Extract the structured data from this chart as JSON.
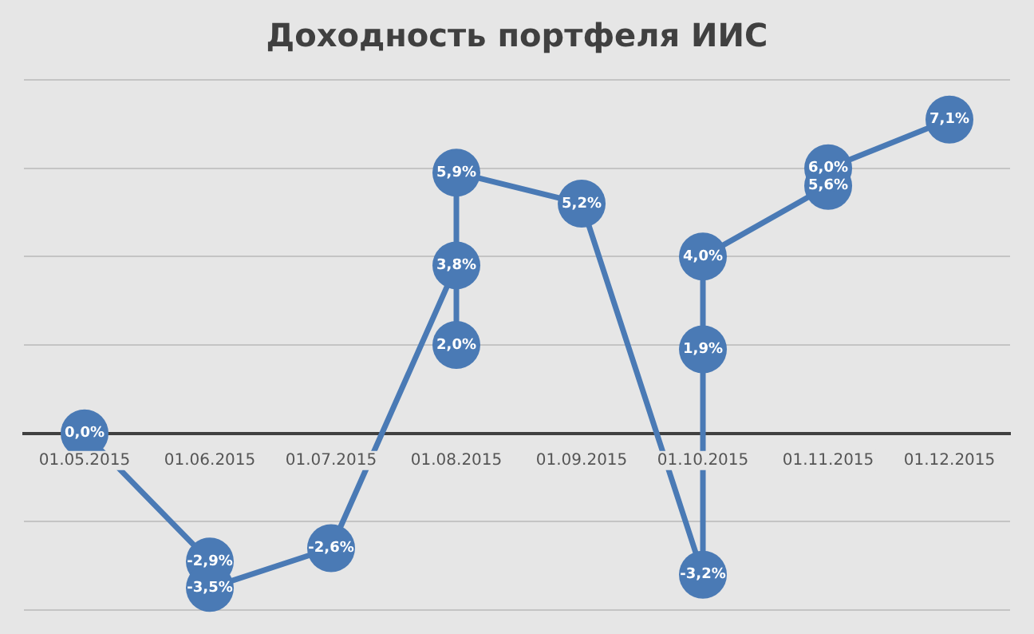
{
  "chart_data": {
    "type": "line",
    "title": "Доходность портфеля ИИС",
    "x": [
      "2015-05-01",
      "2015-06-01",
      "2015-06-01",
      "2015-07-01",
      "2015-08-01",
      "2015-08-01",
      "2015-08-01",
      "2015-09-01",
      "2015-10-01",
      "2015-10-01",
      "2015-10-01",
      "2015-11-01",
      "2015-11-01",
      "2015-12-01"
    ],
    "series": [
      {
        "color": "#4a7ab5",
        "values": [
          0.0,
          -2.9,
          -3.5,
          -2.6,
          3.8,
          2.0,
          5.9,
          5.2,
          -3.2,
          1.9,
          4.0,
          5.6,
          6.0,
          7.1
        ],
        "value_labels": [
          "0,0%",
          "-2,9%",
          "-3,5%",
          "-2,6%",
          "3,8%",
          "2,0%",
          "5,9%",
          "5,2%",
          "-3,2%",
          "1,9%",
          "4,0%",
          "5,6%",
          "6,0%",
          "7,1%"
        ]
      }
    ],
    "xlim": [
      "2015-04-16",
      "2015-12-16"
    ],
    "xticks": [
      {
        "value": "2015-05-01",
        "label": "01.05.2015"
      },
      {
        "value": "2015-06-01",
        "label": "01.06.2015"
      },
      {
        "value": "2015-07-01",
        "label": "01.07.2015"
      },
      {
        "value": "2015-08-01",
        "label": "01.08.2015"
      },
      {
        "value": "2015-09-01",
        "label": "01.09.2015"
      },
      {
        "value": "2015-10-01",
        "label": "01.10.2015"
      },
      {
        "value": "2015-11-01",
        "label": "01.11.2015"
      },
      {
        "value": "2015-12-01",
        "label": "01.12.2015"
      }
    ],
    "tick_labels": "x",
    "grid": "y",
    "legend": false,
    "marker": "circle",
    "line_style": "solid"
  }
}
